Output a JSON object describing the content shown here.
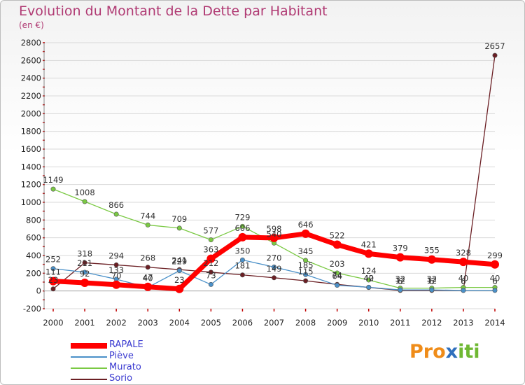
{
  "title": "Evolution du Montant de la Dette par Habitant",
  "unit": "(en €)",
  "logo": {
    "part1": "Pro",
    "part2": "x",
    "part3": "iti"
  },
  "chart_data": {
    "type": "line",
    "title": "Evolution du Montant de la Dette par Habitant",
    "ylabel": "(en €)",
    "xlabel": "",
    "ylim": [
      -200,
      2800
    ],
    "yticks": [
      -200,
      0,
      200,
      400,
      600,
      800,
      1000,
      1200,
      1400,
      1600,
      1800,
      2000,
      2200,
      2400,
      2600,
      2800
    ],
    "categories": [
      "2000",
      "2001",
      "2002",
      "2003",
      "2004",
      "2005",
      "2006",
      "2007",
      "2008",
      "2009",
      "2010",
      "2011",
      "2012",
      "2013",
      "2014"
    ],
    "series": [
      {
        "name": "RAPALE",
        "color": "#ff0000",
        "values": [
          111,
          92,
          70,
          47,
          23,
          363,
          606,
          598,
          646,
          522,
          421,
          379,
          355,
          328,
          299
        ]
      },
      {
        "name": "Piève",
        "color": "#4a90c8",
        "values": [
          252,
          211,
          133,
          40,
          229,
          73,
          350,
          270,
          185,
          64,
          42,
          12,
          12,
          6,
          6
        ]
      },
      {
        "name": "Murato",
        "color": "#7ac943",
        "values": [
          1149,
          1008,
          866,
          744,
          709,
          577,
          729,
          540,
          345,
          203,
          124,
          32,
          32,
          40,
          40
        ]
      },
      {
        "name": "Sorio",
        "color": "#6b1f24",
        "values": [
          23,
          318,
          294,
          268,
          241,
          212,
          181,
          149,
          115,
          74,
          40,
          6,
          6,
          6,
          2657
        ]
      }
    ]
  }
}
